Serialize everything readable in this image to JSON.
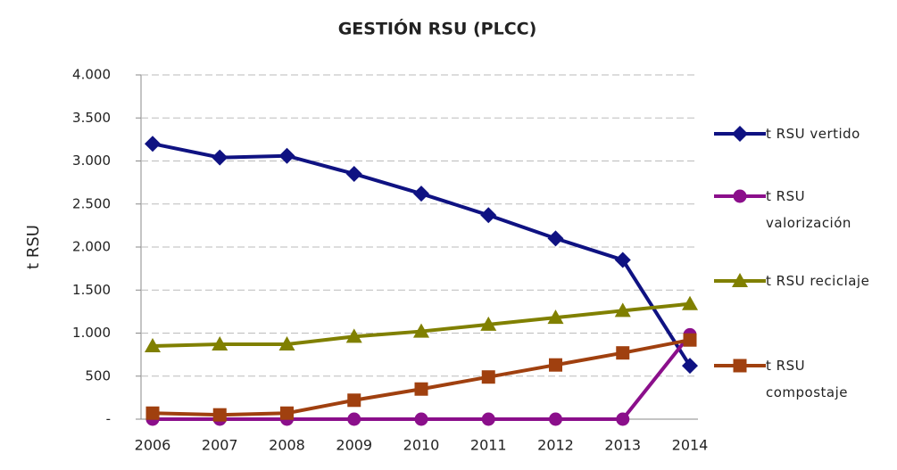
{
  "chart_data": {
    "type": "line",
    "title": "GESTIÓN RSU (PLCC)",
    "y_label": "t RSU",
    "categories": [
      "2006",
      "2007",
      "2008",
      "2009",
      "2010",
      "2011",
      "2012",
      "2013",
      "2014"
    ],
    "series": [
      {
        "name": "t RSU vertido",
        "color": "#0f1282",
        "marker": "diamond",
        "values": [
          3200,
          3040,
          3060,
          2850,
          2620,
          2370,
          2100,
          1850,
          620
        ]
      },
      {
        "name": "t RSU valorización",
        "color": "#8b0f8b",
        "marker": "circle",
        "values": [
          0,
          0,
          0,
          0,
          0,
          0,
          0,
          0,
          980
        ]
      },
      {
        "name": "t RSU reciclaje",
        "color": "#808000",
        "marker": "triangle",
        "values": [
          850,
          870,
          870,
          960,
          1020,
          1100,
          1180,
          1260,
          1340
        ]
      },
      {
        "name": "t RSU compostaje",
        "color": "#a0400f",
        "marker": "square",
        "values": [
          70,
          50,
          70,
          220,
          350,
          490,
          630,
          770,
          920
        ]
      }
    ],
    "ylim": [
      0,
      4000
    ],
    "yticks": [
      {
        "value": 0,
        "label": "-"
      },
      500,
      {
        "value": 1000,
        "label": "1.000"
      },
      {
        "value": 1500,
        "label": "1.500"
      },
      {
        "value": 2000,
        "label": "2.000"
      },
      {
        "value": 2500,
        "label": "2.500"
      },
      {
        "value": 3000,
        "label": "3.000"
      },
      {
        "value": 3500,
        "label": "3.500"
      },
      {
        "value": 4000,
        "label": "4.000"
      }
    ],
    "grid": true
  }
}
